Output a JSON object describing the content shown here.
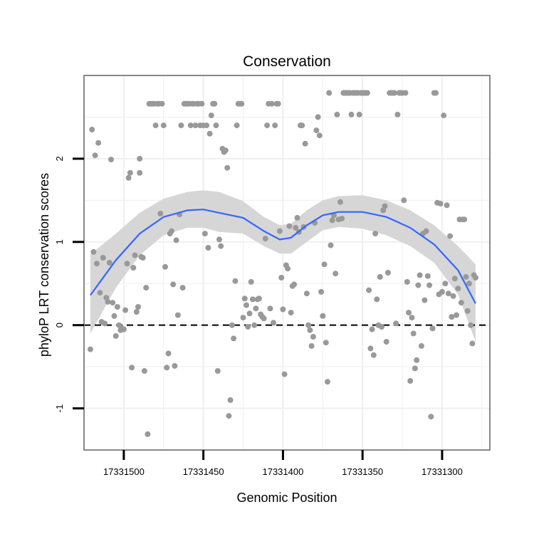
{
  "chart_data": {
    "type": "scatter",
    "title": "Conservation",
    "xlabel": "Genomic Position",
    "ylabel": "phyloP LRT conservation scores",
    "x_axis_reversed": true,
    "xlim": [
      17331525,
      17331270
    ],
    "ylim": [
      -1.5,
      3.0
    ],
    "x_ticks": [
      17331500,
      17331450,
      17331400,
      17331350,
      17331300
    ],
    "x_tick_labels": [
      "17331500",
      "17331450",
      "17331400",
      "17331350",
      "17331300"
    ],
    "y_ticks": [
      -1,
      0,
      1,
      2
    ],
    "y_tick_labels": [
      "-1",
      "0",
      "1",
      "2"
    ],
    "reference_line": {
      "y": 0,
      "style": "dashed"
    },
    "grid": true,
    "legend": "none",
    "colors": {
      "points": "#999999",
      "smooth_line": "#3366ff",
      "confidence_band": "#d6d6d6",
      "panel_border": "#888888",
      "grid": "#efefef"
    },
    "points": [
      {
        "x": 17331521,
        "y": -0.29
      },
      {
        "x": 17331520,
        "y": 2.35
      },
      {
        "x": 17331519,
        "y": 0.88
      },
      {
        "x": 17331518,
        "y": 2.04
      },
      {
        "x": 17331517,
        "y": 0.74
      },
      {
        "x": 17331516,
        "y": 2.19
      },
      {
        "x": 17331515,
        "y": 0.39
      },
      {
        "x": 17331514,
        "y": 0.04
      },
      {
        "x": 17331513,
        "y": 0.81
      },
      {
        "x": 17331512,
        "y": 0.02
      },
      {
        "x": 17331511,
        "y": 0.33
      },
      {
        "x": 17331510,
        "y": 0.28
      },
      {
        "x": 17331509,
        "y": 0.75
      },
      {
        "x": 17331508,
        "y": 1.99
      },
      {
        "x": 17331507,
        "y": 0.27
      },
      {
        "x": 17331506,
        "y": 0.11
      },
      {
        "x": 17331505,
        "y": -0.13
      },
      {
        "x": 17331504,
        "y": 0.22
      },
      {
        "x": 17331503,
        "y": 0.0
      },
      {
        "x": 17331502,
        "y": -0.06
      },
      {
        "x": 17331501,
        "y": -0.04
      },
      {
        "x": 17331500,
        "y": -0.05
      },
      {
        "x": 17331499,
        "y": 0.18
      },
      {
        "x": 17331498,
        "y": 0.74
      },
      {
        "x": 17331497,
        "y": 1.77
      },
      {
        "x": 17331496,
        "y": 1.83
      },
      {
        "x": 17331495,
        "y": -0.51
      },
      {
        "x": 17331494,
        "y": 0.69
      },
      {
        "x": 17331493,
        "y": 0.84
      },
      {
        "x": 17331492,
        "y": 0.16
      },
      {
        "x": 17331491,
        "y": 0.22
      },
      {
        "x": 17331490,
        "y": 1.83
      },
      {
        "x": 17331490,
        "y": 2.0
      },
      {
        "x": 17331489,
        "y": 0.82
      },
      {
        "x": 17331488,
        "y": 0.81
      },
      {
        "x": 17331487,
        "y": -0.55
      },
      {
        "x": 17331486,
        "y": 0.45
      },
      {
        "x": 17331485,
        "y": -1.31
      },
      {
        "x": 17331484,
        "y": 2.66
      },
      {
        "x": 17331483,
        "y": 2.66
      },
      {
        "x": 17331482,
        "y": 2.66
      },
      {
        "x": 17331481,
        "y": 2.66
      },
      {
        "x": 17331480,
        "y": 2.4
      },
      {
        "x": 17331479,
        "y": 2.66
      },
      {
        "x": 17331478,
        "y": 2.66
      },
      {
        "x": 17331477,
        "y": 1.34
      },
      {
        "x": 17331476,
        "y": 2.66
      },
      {
        "x": 17331475,
        "y": 2.4
      },
      {
        "x": 17331474,
        "y": 0.7
      },
      {
        "x": 17331473,
        "y": -0.51
      },
      {
        "x": 17331472,
        "y": -0.34
      },
      {
        "x": 17331471,
        "y": 1.1
      },
      {
        "x": 17331470,
        "y": 1.13
      },
      {
        "x": 17331469,
        "y": 0.49
      },
      {
        "x": 17331468,
        "y": -0.49
      },
      {
        "x": 17331467,
        "y": 1.02
      },
      {
        "x": 17331466,
        "y": 0.12
      },
      {
        "x": 17331465,
        "y": 1.33
      },
      {
        "x": 17331464,
        "y": 2.4
      },
      {
        "x": 17331463,
        "y": 0.45
      },
      {
        "x": 17331462,
        "y": 2.66
      },
      {
        "x": 17331461,
        "y": 2.66
      },
      {
        "x": 17331460,
        "y": 2.66
      },
      {
        "x": 17331459,
        "y": 2.66
      },
      {
        "x": 17331458,
        "y": 2.4
      },
      {
        "x": 17331457,
        "y": 2.66
      },
      {
        "x": 17331456,
        "y": 2.66
      },
      {
        "x": 17331455,
        "y": 2.4
      },
      {
        "x": 17331454,
        "y": 2.66
      },
      {
        "x": 17331453,
        "y": 2.66
      },
      {
        "x": 17331452,
        "y": 2.4
      },
      {
        "x": 17331451,
        "y": 2.66
      },
      {
        "x": 17331450,
        "y": 2.4
      },
      {
        "x": 17331449,
        "y": 1.1
      },
      {
        "x": 17331448,
        "y": 2.4
      },
      {
        "x": 17331447,
        "y": 0.93
      },
      {
        "x": 17331446,
        "y": 2.3
      },
      {
        "x": 17331445,
        "y": 2.52
      },
      {
        "x": 17331444,
        "y": 2.66
      },
      {
        "x": 17331443,
        "y": 2.66
      },
      {
        "x": 17331442,
        "y": 2.4
      },
      {
        "x": 17331441,
        "y": -0.55
      },
      {
        "x": 17331440,
        "y": 1.03
      },
      {
        "x": 17331439,
        "y": 0.95
      },
      {
        "x": 17331438,
        "y": 2.12
      },
      {
        "x": 17331437,
        "y": 2.08
      },
      {
        "x": 17331436,
        "y": 2.1
      },
      {
        "x": 17331435,
        "y": 1.89
      },
      {
        "x": 17331434,
        "y": -1.09
      },
      {
        "x": 17331433,
        "y": -0.9
      },
      {
        "x": 17331432,
        "y": 0.0
      },
      {
        "x": 17331431,
        "y": -0.16
      },
      {
        "x": 17331430,
        "y": 0.53
      },
      {
        "x": 17331429,
        "y": 2.4
      },
      {
        "x": 17331428,
        "y": 2.66
      },
      {
        "x": 17331427,
        "y": 2.66
      },
      {
        "x": 17331426,
        "y": 2.66
      },
      {
        "x": 17331425,
        "y": 0.09
      },
      {
        "x": 17331424,
        "y": 0.32
      },
      {
        "x": 17331423,
        "y": 0.24
      },
      {
        "x": 17331422,
        "y": -0.02
      },
      {
        "x": 17331421,
        "y": 0.14
      },
      {
        "x": 17331420,
        "y": 0.52
      },
      {
        "x": 17331419,
        "y": 0.31
      },
      {
        "x": 17331418,
        "y": 0.0
      },
      {
        "x": 17331417,
        "y": 0.2
      },
      {
        "x": 17331416,
        "y": 0.31
      },
      {
        "x": 17331415,
        "y": 0.32
      },
      {
        "x": 17331414,
        "y": 0.13
      },
      {
        "x": 17331413,
        "y": 0.1
      },
      {
        "x": 17331412,
        "y": 0.08
      },
      {
        "x": 17331411,
        "y": 1.04
      },
      {
        "x": 17331410,
        "y": 2.4
      },
      {
        "x": 17331409,
        "y": 2.66
      },
      {
        "x": 17331408,
        "y": 0.2
      },
      {
        "x": 17331407,
        "y": 2.66
      },
      {
        "x": 17331406,
        "y": 0.03
      },
      {
        "x": 17331405,
        "y": 2.4
      },
      {
        "x": 17331404,
        "y": 2.66
      },
      {
        "x": 17331403,
        "y": 2.66
      },
      {
        "x": 17331402,
        "y": 1.13
      },
      {
        "x": 17331401,
        "y": 0.57
      },
      {
        "x": 17331400,
        "y": 0.19
      },
      {
        "x": 17331399,
        "y": -0.59
      },
      {
        "x": 17331398,
        "y": 0.72
      },
      {
        "x": 17331397,
        "y": 0.68
      },
      {
        "x": 17331396,
        "y": 1.19
      },
      {
        "x": 17331395,
        "y": 0.15
      },
      {
        "x": 17331394,
        "y": 0.47
      },
      {
        "x": 17331393,
        "y": 0.49
      },
      {
        "x": 17331392,
        "y": 1.17
      },
      {
        "x": 17331391,
        "y": 1.29
      },
      {
        "x": 17331390,
        "y": 1.12
      },
      {
        "x": 17331389,
        "y": 2.4
      },
      {
        "x": 17331388,
        "y": 2.4
      },
      {
        "x": 17331387,
        "y": 1.18
      },
      {
        "x": 17331386,
        "y": 2.18
      },
      {
        "x": 17331385,
        "y": 0.38
      },
      {
        "x": 17331384,
        "y": 0.0
      },
      {
        "x": 17331383,
        "y": -0.06
      },
      {
        "x": 17331382,
        "y": -0.25
      },
      {
        "x": 17331381,
        "y": -0.14
      },
      {
        "x": 17331380,
        "y": 1.23
      },
      {
        "x": 17331379,
        "y": 2.34
      },
      {
        "x": 17331378,
        "y": 2.5
      },
      {
        "x": 17331377,
        "y": 2.28
      },
      {
        "x": 17331376,
        "y": 0.4
      },
      {
        "x": 17331375,
        "y": 0.11
      },
      {
        "x": 17331374,
        "y": 0.73
      },
      {
        "x": 17331373,
        "y": -0.21
      },
      {
        "x": 17331372,
        "y": -0.68
      },
      {
        "x": 17331371,
        "y": 2.79
      },
      {
        "x": 17331370,
        "y": 0.96
      },
      {
        "x": 17331369,
        "y": 1.26
      },
      {
        "x": 17331368,
        "y": 1.32
      },
      {
        "x": 17331367,
        "y": 0.62
      },
      {
        "x": 17331366,
        "y": 2.53
      },
      {
        "x": 17331365,
        "y": 1.27
      },
      {
        "x": 17331364,
        "y": 1.48
      },
      {
        "x": 17331363,
        "y": 1.28
      },
      {
        "x": 17331362,
        "y": 2.79
      },
      {
        "x": 17331361,
        "y": 2.79
      },
      {
        "x": 17331360,
        "y": 2.79
      },
      {
        "x": 17331359,
        "y": 2.79
      },
      {
        "x": 17331358,
        "y": 2.79
      },
      {
        "x": 17331357,
        "y": 2.53
      },
      {
        "x": 17331356,
        "y": 2.79
      },
      {
        "x": 17331355,
        "y": 2.79
      },
      {
        "x": 17331354,
        "y": 2.79
      },
      {
        "x": 17331353,
        "y": 2.79
      },
      {
        "x": 17331352,
        "y": 2.53
      },
      {
        "x": 17331351,
        "y": 2.79
      },
      {
        "x": 17331350,
        "y": 2.79
      },
      {
        "x": 17331349,
        "y": 2.79
      },
      {
        "x": 17331348,
        "y": 2.79
      },
      {
        "x": 17331347,
        "y": 2.79
      },
      {
        "x": 17331346,
        "y": 0.42
      },
      {
        "x": 17331345,
        "y": -0.28
      },
      {
        "x": 17331344,
        "y": -0.05
      },
      {
        "x": 17331343,
        "y": -0.36
      },
      {
        "x": 17331342,
        "y": 1.1
      },
      {
        "x": 17331341,
        "y": 0.31
      },
      {
        "x": 17331340,
        "y": 0.0
      },
      {
        "x": 17331339,
        "y": 0.58
      },
      {
        "x": 17331338,
        "y": -0.02
      },
      {
        "x": 17331337,
        "y": 1.38
      },
      {
        "x": 17331336,
        "y": 1.43
      },
      {
        "x": 17331335,
        "y": -0.2
      },
      {
        "x": 17331334,
        "y": 0.63
      },
      {
        "x": 17331333,
        "y": 2.79
      },
      {
        "x": 17331332,
        "y": 2.79
      },
      {
        "x": 17331331,
        "y": 2.79
      },
      {
        "x": 17331330,
        "y": 2.79
      },
      {
        "x": 17331329,
        "y": 0.02
      },
      {
        "x": 17331328,
        "y": 2.53
      },
      {
        "x": 17331327,
        "y": 2.79
      },
      {
        "x": 17331326,
        "y": 2.79
      },
      {
        "x": 17331325,
        "y": 2.79
      },
      {
        "x": 17331324,
        "y": 1.5
      },
      {
        "x": 17331323,
        "y": 2.79
      },
      {
        "x": 17331322,
        "y": 0.52
      },
      {
        "x": 17331321,
        "y": 0.15
      },
      {
        "x": 17331320,
        "y": -0.67
      },
      {
        "x": 17331319,
        "y": 0.09
      },
      {
        "x": 17331318,
        "y": -0.1
      },
      {
        "x": 17331317,
        "y": -0.52
      },
      {
        "x": 17331316,
        "y": -0.42
      },
      {
        "x": 17331315,
        "y": 0.48
      },
      {
        "x": 17331314,
        "y": 0.6
      },
      {
        "x": 17331313,
        "y": -0.25
      },
      {
        "x": 17331312,
        "y": 1.1
      },
      {
        "x": 17331311,
        "y": 0.3
      },
      {
        "x": 17331310,
        "y": 1.13
      },
      {
        "x": 17331309,
        "y": 0.59
      },
      {
        "x": 17331308,
        "y": 0.48
      },
      {
        "x": 17331307,
        "y": -1.1
      },
      {
        "x": 17331306,
        "y": -0.04
      },
      {
        "x": 17331305,
        "y": 2.79
      },
      {
        "x": 17331304,
        "y": 2.79
      },
      {
        "x": 17331303,
        "y": 1.47
      },
      {
        "x": 17331302,
        "y": 0.37
      },
      {
        "x": 17331301,
        "y": 1.46
      },
      {
        "x": 17331300,
        "y": 0.4
      },
      {
        "x": 17331299,
        "y": 2.52
      },
      {
        "x": 17331298,
        "y": 0.5
      },
      {
        "x": 17331297,
        "y": 1.44
      },
      {
        "x": 17331296,
        "y": 0.38
      },
      {
        "x": 17331295,
        "y": 1.07
      },
      {
        "x": 17331294,
        "y": 0.1
      },
      {
        "x": 17331293,
        "y": 0.35
      },
      {
        "x": 17331292,
        "y": 0.56
      },
      {
        "x": 17331291,
        "y": 0.12
      },
      {
        "x": 17331290,
        "y": 0.44
      },
      {
        "x": 17331289,
        "y": 1.27
      },
      {
        "x": 17331288,
        "y": 0.27
      },
      {
        "x": 17331287,
        "y": 1.27
      },
      {
        "x": 17331286,
        "y": 1.27
      },
      {
        "x": 17331285,
        "y": 0.58
      },
      {
        "x": 17331284,
        "y": 0.17
      },
      {
        "x": 17331283,
        "y": 0.5
      },
      {
        "x": 17331282,
        "y": 0.0
      },
      {
        "x": 17331281,
        "y": -0.22
      },
      {
        "x": 17331280,
        "y": 0.6
      },
      {
        "x": 17331279,
        "y": 0.57
      }
    ],
    "smooth": [
      {
        "x": 17331521,
        "y": 0.36,
        "lo": -0.1,
        "hi": 0.85
      },
      {
        "x": 17331505,
        "y": 0.78,
        "lo": 0.45,
        "hi": 1.1
      },
      {
        "x": 17331490,
        "y": 1.1,
        "lo": 0.84,
        "hi": 1.35
      },
      {
        "x": 17331475,
        "y": 1.3,
        "lo": 1.08,
        "hi": 1.52
      },
      {
        "x": 17331460,
        "y": 1.38,
        "lo": 1.17,
        "hi": 1.6
      },
      {
        "x": 17331450,
        "y": 1.39,
        "lo": 1.17,
        "hi": 1.62
      },
      {
        "x": 17331440,
        "y": 1.35,
        "lo": 1.12,
        "hi": 1.6
      },
      {
        "x": 17331425,
        "y": 1.29,
        "lo": 1.1,
        "hi": 1.49
      },
      {
        "x": 17331412,
        "y": 1.13,
        "lo": 0.95,
        "hi": 1.3
      },
      {
        "x": 17331402,
        "y": 1.03,
        "lo": 0.86,
        "hi": 1.2
      },
      {
        "x": 17331395,
        "y": 1.05,
        "lo": 0.86,
        "hi": 1.22
      },
      {
        "x": 17331385,
        "y": 1.2,
        "lo": 1.0,
        "hi": 1.38
      },
      {
        "x": 17331375,
        "y": 1.32,
        "lo": 1.14,
        "hi": 1.5
      },
      {
        "x": 17331365,
        "y": 1.36,
        "lo": 1.18,
        "hi": 1.55
      },
      {
        "x": 17331350,
        "y": 1.36,
        "lo": 1.16,
        "hi": 1.56
      },
      {
        "x": 17331335,
        "y": 1.3,
        "lo": 1.08,
        "hi": 1.5
      },
      {
        "x": 17331320,
        "y": 1.17,
        "lo": 0.95,
        "hi": 1.38
      },
      {
        "x": 17331305,
        "y": 0.97,
        "lo": 0.75,
        "hi": 1.2
      },
      {
        "x": 17331290,
        "y": 0.66,
        "lo": 0.37,
        "hi": 0.95
      },
      {
        "x": 17331279,
        "y": 0.26,
        "lo": -0.2,
        "hi": 0.73
      }
    ]
  }
}
